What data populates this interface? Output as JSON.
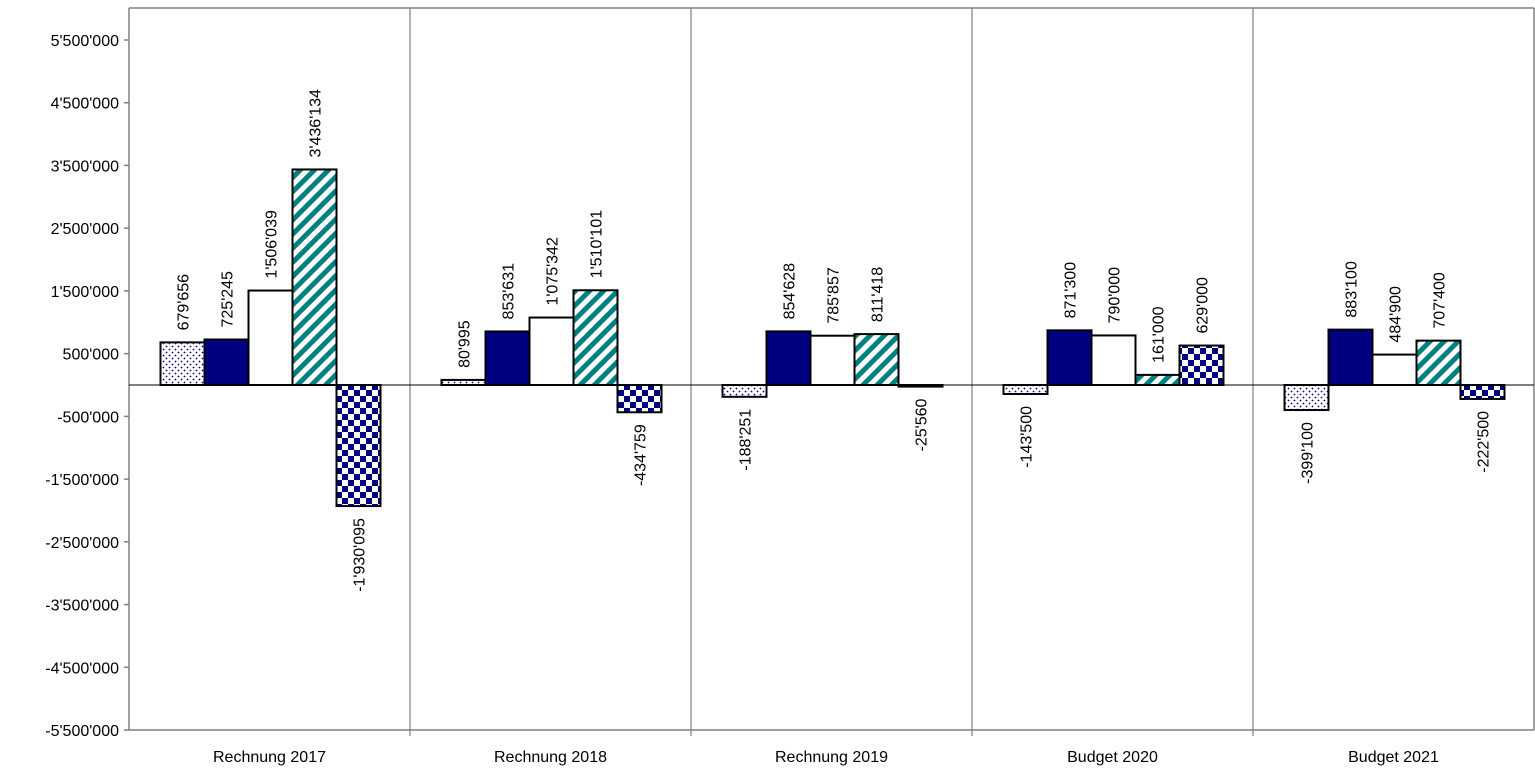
{
  "chart_data": {
    "type": "bar",
    "categories": [
      "Rechnung 2017",
      "Rechnung 2018",
      "Rechnung 2019",
      "Budget 2020",
      "Budget 2021"
    ],
    "series": [
      {
        "pattern": "dots",
        "values": [
          679656,
          80995,
          -188251,
          -143500,
          -399100
        ],
        "labels": [
          "679'656",
          "80'995",
          "-188'251",
          "-143'500",
          "-399'100"
        ]
      },
      {
        "pattern": "solid-navy",
        "values": [
          725245,
          853631,
          854628,
          871300,
          883100
        ],
        "labels": [
          "725'245",
          "853'631",
          "854'628",
          "871'300",
          "883'100"
        ]
      },
      {
        "pattern": "white",
        "values": [
          1506039,
          1075342,
          785857,
          790000,
          484900
        ],
        "labels": [
          "1'506'039",
          "1'075'342",
          "785'857",
          "790'000",
          "484'900"
        ]
      },
      {
        "pattern": "teal-diagonal",
        "values": [
          3436134,
          1510101,
          811418,
          161000,
          707400
        ],
        "labels": [
          "3'436'134",
          "1'510'101",
          "811'418",
          "161'000",
          "707'400"
        ]
      },
      {
        "pattern": "navy-checker",
        "values": [
          -1930095,
          -434759,
          -25560,
          629000,
          -222500
        ],
        "labels": [
          "-1'930'095",
          "-434'759",
          "-25'560",
          "629'000",
          "-222'500"
        ]
      }
    ],
    "ylim": [
      -5500000,
      5500000
    ],
    "yticks": [
      5500000,
      4500000,
      3500000,
      2500000,
      1500000,
      500000,
      -500000,
      -1500000,
      -2500000,
      -3500000,
      -4500000,
      -5500000
    ],
    "ytick_labels": [
      "5'500'000",
      "4'500'000",
      "3'500'000",
      "2'500'000",
      "1'500'000",
      "500'000",
      "-500'000",
      "-1'500'000",
      "-2'500'000",
      "-3'500'000",
      "-4'500'000",
      "-5'500'000"
    ],
    "grid": false,
    "legend": "none",
    "colors": {
      "navy": "#000080",
      "teal": "#008080",
      "axis": "#808080",
      "border": "#000000"
    }
  }
}
